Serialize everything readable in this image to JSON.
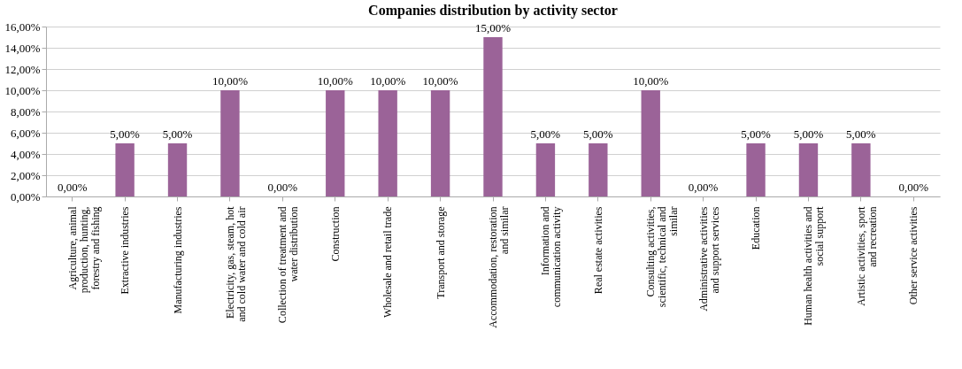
{
  "chart_data": {
    "type": "bar",
    "title": "Companies distribution by activity sector",
    "categories": [
      "Agriculture, animal production, hunting, forestry and fishing",
      "Extractive industries",
      "Manufacturing industries",
      "Electricity, gas, steam, hot and cold water and cold air",
      "Collection of treatment and water distribution",
      "Construction",
      "Wholesale and retail trade",
      "Transport and storage",
      "Accommodation, restoration and similar",
      "Information and communication activity",
      "Real estate activities",
      "Consulting activities, scientific, technical and similar",
      "Administrative activities and support services",
      "Education",
      "Human health activities and social support",
      "Artistic activities, sport and recreation",
      "Other service activities"
    ],
    "values": [
      0,
      5,
      5,
      10,
      0,
      10,
      10,
      10,
      15,
      5,
      5,
      10,
      0,
      5,
      5,
      5,
      0
    ],
    "value_labels": [
      "0,00%",
      "5,00%",
      "5,00%",
      "10,00%",
      "0,00%",
      "10,00%",
      "10,00%",
      "10,00%",
      "15,00%",
      "5,00%",
      "5,00%",
      "10,00%",
      "0,00%",
      "5,00%",
      "5,00%",
      "5,00%",
      "0,00%"
    ],
    "color": "#9b6398",
    "ylim": [
      0,
      16
    ],
    "yticks": [
      {
        "value": 0,
        "label": "0,00%"
      },
      {
        "value": 2,
        "label": "2,00%"
      },
      {
        "value": 4,
        "label": "4,00%"
      },
      {
        "value": 6,
        "label": "6,00%"
      },
      {
        "value": 8,
        "label": "8,00%"
      },
      {
        "value": 10,
        "label": "10,00%"
      },
      {
        "value": 12,
        "label": "12,00%"
      },
      {
        "value": 14,
        "label": "14,00%"
      },
      {
        "value": 16,
        "label": "16,00%"
      }
    ],
    "grid": "y"
  }
}
